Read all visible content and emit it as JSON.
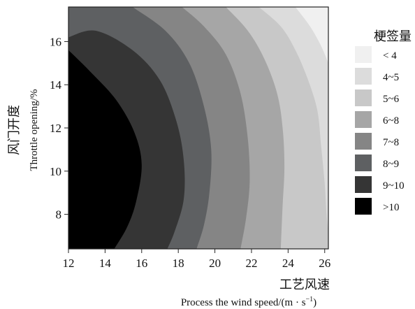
{
  "chart_data": {
    "type": "contour",
    "xlabel_cn": "工艺风速",
    "xlabel_en": "Process the wind speed/(m · s",
    "xlabel_en_sup": "−1",
    "xlabel_en_end": ")",
    "ylabel_cn": "风门开度",
    "ylabel_en": "Throttle opening/%",
    "xlim": [
      12,
      26.2
    ],
    "ylim": [
      6.4,
      17.6
    ],
    "xticks": [
      "12",
      "14",
      "16",
      "18",
      "20",
      "22",
      "24",
      "26"
    ],
    "yticks": [
      "8",
      "10",
      "12",
      "14",
      "16"
    ],
    "legend": {
      "title": "梗签量",
      "placement": "right",
      "entries": [
        {
          "label": "< 4",
          "color": "#f0f0f0"
        },
        {
          "label": "4~5",
          "color": "#dcdcdc"
        },
        {
          "label": "5~6",
          "color": "#c8c8c8"
        },
        {
          "label": "6~8",
          "color": "#a6a6a6"
        },
        {
          "label": "7~8",
          "color": "#858585"
        },
        {
          "label": "8~9",
          "color": "#5e6062"
        },
        {
          "label": "9~10",
          "color": "#353535"
        },
        {
          "label": ">10",
          "color": "#000000"
        }
      ]
    },
    "contour_boundaries": [
      {
        "level": ">10",
        "points": [
          [
            12,
            15.6
          ],
          [
            13.2,
            14.6
          ],
          [
            14.6,
            13.3
          ],
          [
            15.6,
            11.8
          ],
          [
            16.0,
            10.3
          ],
          [
            15.7,
            8.6
          ],
          [
            15.2,
            7.4
          ],
          [
            14.5,
            6.4
          ]
        ]
      },
      {
        "level": "9~10",
        "points": [
          [
            12,
            16.2
          ],
          [
            13.5,
            16.5
          ],
          [
            15.5,
            15.6
          ],
          [
            17.0,
            14.2
          ],
          [
            17.9,
            12.3
          ],
          [
            18.3,
            10.5
          ],
          [
            18.3,
            8.7
          ],
          [
            17.8,
            7.2
          ],
          [
            17.4,
            6.4
          ]
        ]
      },
      {
        "level": "8~9",
        "points": [
          [
            15.5,
            17.6
          ],
          [
            17.3,
            16.5
          ],
          [
            18.6,
            15.0
          ],
          [
            19.4,
            13.0
          ],
          [
            19.8,
            11.0
          ],
          [
            19.7,
            9.0
          ],
          [
            19.4,
            7.5
          ],
          [
            19.0,
            6.4
          ]
        ]
      },
      {
        "level": "7~8",
        "points": [
          [
            18.2,
            17.6
          ],
          [
            19.4,
            16.7
          ],
          [
            20.6,
            15.4
          ],
          [
            21.4,
            13.6
          ],
          [
            21.8,
            11.5
          ],
          [
            21.9,
            9.5
          ],
          [
            21.7,
            7.8
          ],
          [
            21.4,
            6.4
          ]
        ]
      },
      {
        "level": "6~8",
        "points": [
          [
            20.6,
            17.6
          ],
          [
            21.8,
            16.5
          ],
          [
            22.7,
            15.2
          ],
          [
            23.4,
            13.6
          ],
          [
            23.7,
            12.0
          ],
          [
            23.8,
            10.2
          ],
          [
            23.7,
            8.4
          ],
          [
            23.6,
            6.4
          ]
        ]
      },
      {
        "level": "5~6",
        "points": [
          [
            22.4,
            17.6
          ],
          [
            23.6,
            16.7
          ],
          [
            24.4,
            15.6
          ],
          [
            25.1,
            14.2
          ],
          [
            25.6,
            12.8
          ],
          [
            25.8,
            11.2
          ],
          [
            26.0,
            9.4
          ],
          [
            26.1,
            8.0
          ],
          [
            26.2,
            7.2
          ]
        ]
      },
      {
        "level": "4~5",
        "points": [
          [
            24.4,
            17.6
          ],
          [
            25.2,
            16.7
          ],
          [
            25.8,
            15.8
          ],
          [
            26.2,
            15.0
          ]
        ]
      },
      {
        "level": "< 4",
        "points": [
          [
            25.8,
            17.6
          ],
          [
            26.2,
            17.0
          ]
        ]
      }
    ]
  }
}
